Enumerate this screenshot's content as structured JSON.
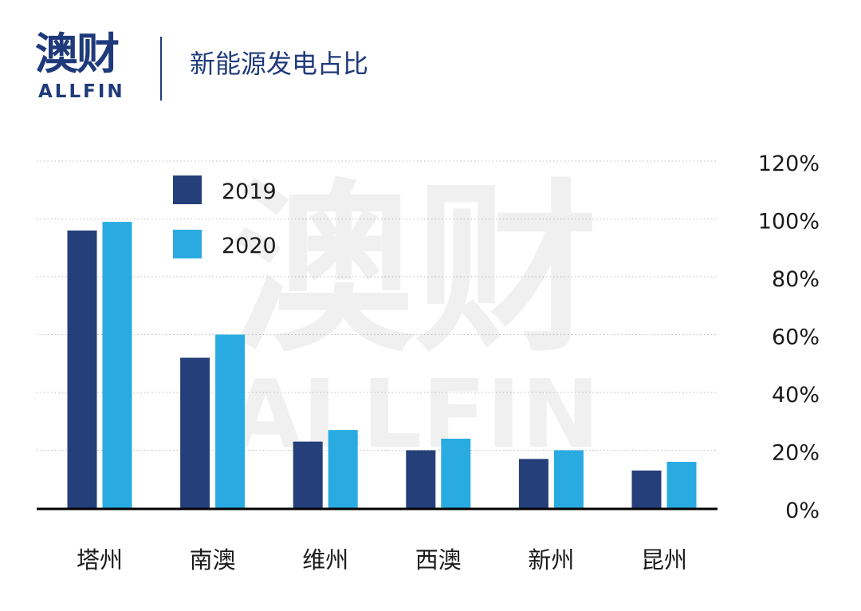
{
  "header": {
    "logo_cn": "澳财",
    "logo_en": "ALLFIN",
    "title": "新能源发电占比"
  },
  "watermark": {
    "cn": "澳财",
    "en": "ALLFIN"
  },
  "colors": {
    "brand": "#1f3a7a",
    "series_2019": "#243f7a",
    "series_2020": "#29abe2",
    "accent_red": "#e5345a"
  },
  "chart_data": {
    "type": "bar",
    "title": "新能源发电占比",
    "categories": [
      "塔州",
      "南澳",
      "维州",
      "西澳",
      "新州",
      "昆州"
    ],
    "series": [
      {
        "name": "2019",
        "values": [
          96,
          52,
          23,
          20,
          17,
          13
        ]
      },
      {
        "name": "2020",
        "values": [
          99,
          60,
          27,
          24,
          20,
          16
        ]
      }
    ],
    "y_ticks": [
      "0%",
      "20%",
      "40%",
      "60%",
      "80%",
      "100%",
      "120%"
    ],
    "ylim": [
      0,
      120
    ],
    "grid": true,
    "legend_position": "top-left",
    "y_axis_position": "right"
  }
}
